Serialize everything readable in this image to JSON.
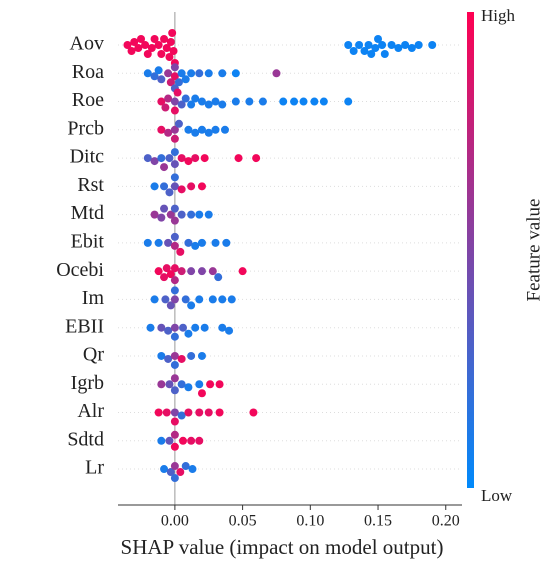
{
  "chart_data": {
    "type": "beeswarm",
    "xlabel": "SHAP value (impact on model output)",
    "xlim": [
      -0.042,
      0.212
    ],
    "xticks": [
      {
        "value": 0,
        "label": "0.00"
      },
      {
        "value": 0.05,
        "label": "0.05"
      },
      {
        "value": 0.1,
        "label": "0.10"
      },
      {
        "value": 0.15,
        "label": "0.15"
      },
      {
        "value": 0.2,
        "label": "0.20"
      }
    ],
    "colorbar": {
      "label": "Feature value",
      "high": "High",
      "low": "Low",
      "colors": [
        "#008afb",
        "#ff0052"
      ]
    },
    "series": [
      {
        "name": "Aov",
        "values": [
          -0.035,
          -0.032,
          -0.03,
          -0.027,
          -0.025,
          -0.022,
          -0.02,
          -0.017,
          -0.015,
          -0.012,
          -0.01,
          -0.008,
          -0.006,
          -0.004,
          -0.003,
          -0.002,
          -0.001,
          0,
          0.128,
          0.132,
          0.136,
          0.14,
          0.143,
          0.145,
          0.148,
          0.15,
          0.153,
          0.155,
          0.16,
          0.165,
          0.17,
          0.175,
          0.18,
          0.19
        ],
        "feature_values": [
          0.95,
          0.95,
          0.95,
          0.95,
          0.95,
          0.95,
          0.95,
          0.95,
          0.95,
          0.95,
          0.95,
          0.95,
          0.95,
          0.95,
          0.95,
          0.95,
          0.95,
          0.95,
          0.05,
          0.05,
          0.05,
          0.05,
          0.05,
          0.05,
          0.05,
          0.05,
          0.05,
          0.05,
          0.05,
          0.05,
          0.05,
          0.05,
          0.05,
          0.05
        ]
      },
      {
        "name": "Roa",
        "values": [
          -0.02,
          -0.015,
          -0.012,
          -0.01,
          -0.005,
          -0.003,
          0,
          0,
          0,
          0.003,
          0.005,
          0.008,
          0.012,
          0.018,
          0.025,
          0.035,
          0.045,
          0.075
        ],
        "feature_values": [
          0.1,
          0.2,
          0.1,
          0.3,
          0.6,
          0.8,
          0.9,
          0.5,
          0.3,
          0.2,
          0.1,
          0.1,
          0.1,
          0.2,
          0.1,
          0.1,
          0.05,
          0.6
        ]
      },
      {
        "name": "Roe",
        "values": [
          -0.01,
          -0.007,
          -0.005,
          0,
          0,
          0.002,
          0.005,
          0.008,
          0.012,
          0.015,
          0.02,
          0.025,
          0.03,
          0.035,
          0.045,
          0.055,
          0.065,
          0.08,
          0.088,
          0.095,
          0.103,
          0.11,
          0.128
        ],
        "feature_values": [
          0.9,
          0.8,
          0.7,
          0.5,
          0.9,
          0.9,
          0.3,
          0.2,
          0.1,
          0.1,
          0.1,
          0.1,
          0.1,
          0.1,
          0.1,
          0.1,
          0.1,
          0.05,
          0.05,
          0.05,
          0.05,
          0.05,
          0.05
        ]
      },
      {
        "name": "Prcb",
        "values": [
          -0.01,
          -0.005,
          0,
          0,
          0.003,
          0.01,
          0.015,
          0.02,
          0.025,
          0.03,
          0.037
        ],
        "feature_values": [
          0.9,
          0.7,
          0.6,
          0.8,
          0.3,
          0.1,
          0.1,
          0.1,
          0.1,
          0.1,
          0.1
        ]
      },
      {
        "name": "Ditc",
        "values": [
          -0.02,
          -0.015,
          -0.01,
          -0.008,
          -0.004,
          0,
          0,
          0.005,
          0.01,
          0.015,
          0.022,
          0.047,
          0.06
        ],
        "feature_values": [
          0.3,
          0.5,
          0.2,
          0.6,
          0.3,
          0.4,
          0.2,
          0.9,
          0.95,
          0.9,
          0.95,
          0.95,
          0.95
        ]
      },
      {
        "name": "Rst",
        "values": [
          -0.015,
          -0.008,
          -0.004,
          0,
          0,
          0.005,
          0.012,
          0.02
        ],
        "feature_values": [
          0.1,
          0.2,
          0.3,
          0.4,
          0.2,
          0.9,
          0.9,
          0.95
        ]
      },
      {
        "name": "Mtd",
        "values": [
          -0.015,
          -0.01,
          -0.008,
          -0.003,
          0,
          0,
          0.005,
          0.012,
          0.018,
          0.025
        ],
        "feature_values": [
          0.6,
          0.5,
          0.4,
          0.6,
          0.6,
          0.3,
          0.3,
          0.2,
          0.1,
          0.1
        ]
      },
      {
        "name": "Ebit",
        "values": [
          -0.02,
          -0.012,
          -0.005,
          0,
          0,
          0.004,
          0.01,
          0.015,
          0.02,
          0.03,
          0.038
        ],
        "feature_values": [
          0.1,
          0.1,
          0.4,
          0.7,
          0.3,
          0.9,
          0.2,
          0.1,
          0.1,
          0.1,
          0.1
        ]
      },
      {
        "name": "Ocebi",
        "values": [
          -0.012,
          -0.008,
          -0.006,
          -0.003,
          0,
          0,
          0.005,
          0.012,
          0.02,
          0.028,
          0.032,
          0.05
        ],
        "feature_values": [
          0.95,
          0.9,
          0.9,
          0.95,
          0.9,
          0.7,
          0.8,
          0.5,
          0.5,
          0.6,
          0.2,
          0.95
        ]
      },
      {
        "name": "Im",
        "values": [
          -0.015,
          -0.007,
          -0.003,
          0,
          0,
          0.008,
          0.012,
          0.018,
          0.028,
          0.035,
          0.042
        ],
        "feature_values": [
          0.1,
          0.3,
          0.4,
          0.5,
          0.2,
          0.2,
          0.1,
          0.1,
          0.1,
          0.1,
          0.1
        ]
      },
      {
        "name": "EBII",
        "values": [
          -0.018,
          -0.01,
          -0.005,
          0,
          0,
          0.006,
          0.01,
          0.015,
          0.022,
          0.035,
          0.04
        ],
        "feature_values": [
          0.1,
          0.4,
          0.3,
          0.5,
          0.2,
          0.3,
          0.1,
          0.1,
          0.1,
          0.1,
          0.1
        ]
      },
      {
        "name": "Qr",
        "values": [
          -0.01,
          -0.005,
          0,
          0,
          0.005,
          0.012,
          0.02
        ],
        "feature_values": [
          0.1,
          0.3,
          0.6,
          0.2,
          0.9,
          0.2,
          0.1
        ]
      },
      {
        "name": "Igrb",
        "values": [
          -0.01,
          -0.004,
          0,
          0,
          0.005,
          0.01,
          0.018,
          0.02,
          0.026,
          0.033
        ],
        "feature_values": [
          0.6,
          0.4,
          0.3,
          0.6,
          0.2,
          0.1,
          0.1,
          0.95,
          0.95,
          0.95
        ]
      },
      {
        "name": "Alr",
        "values": [
          -0.012,
          -0.006,
          0,
          0,
          0.005,
          0.01,
          0.018,
          0.025,
          0.033,
          0.058
        ],
        "feature_values": [
          0.95,
          0.9,
          0.5,
          0.9,
          0.2,
          0.9,
          0.9,
          0.9,
          0.95,
          0.95
        ]
      },
      {
        "name": "Sdtd",
        "values": [
          -0.01,
          -0.004,
          0,
          0,
          0.006,
          0.012,
          0.018
        ],
        "feature_values": [
          0.1,
          0.4,
          0.95,
          0.7,
          0.95,
          0.9,
          0.9
        ]
      },
      {
        "name": "Lr",
        "values": [
          -0.008,
          -0.003,
          0,
          0,
          0.004,
          0.008,
          0.013
        ],
        "feature_values": [
          0.1,
          0.3,
          0.6,
          0.2,
          0.9,
          0.2,
          0.1
        ]
      }
    ]
  }
}
